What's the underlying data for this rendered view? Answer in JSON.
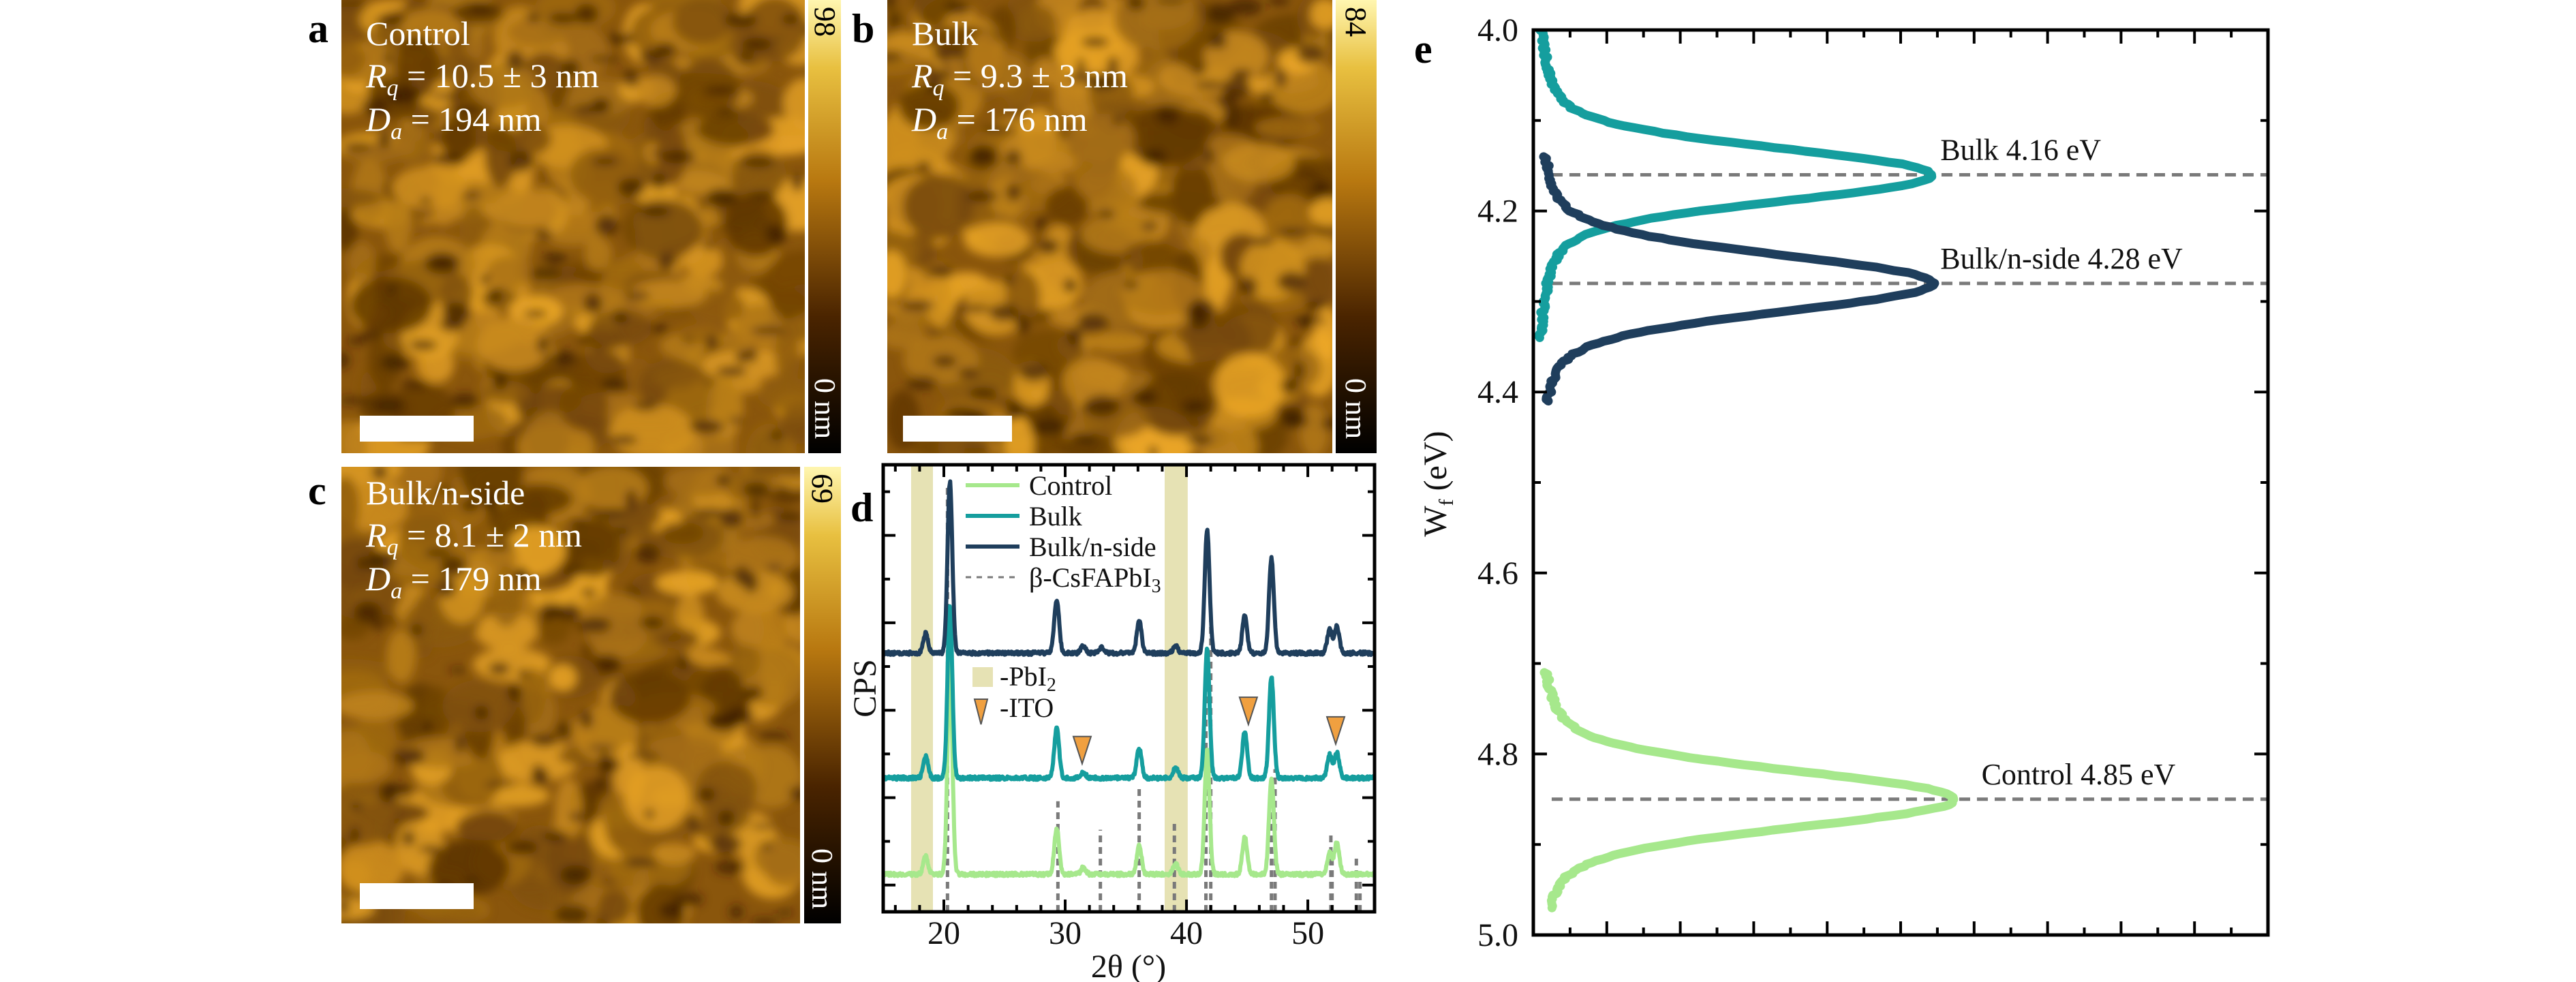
{
  "panels": {
    "a": {
      "letter": "a",
      "title": "Control",
      "rq_sym": "R",
      "rq_sub": "q",
      "rq_val": " = 10.5 ± 3 nm",
      "da_sym": "D",
      "da_sub": "a",
      "da_val": " = 194 nm",
      "cbar_max": "98",
      "cbar_min": "0 nm"
    },
    "b": {
      "letter": "b",
      "title": "Bulk",
      "rq_sym": "R",
      "rq_sub": "q",
      "rq_val": " = 9.3 ± 3 nm",
      "da_sym": "D",
      "da_sub": "a",
      "da_val": " = 176 nm",
      "cbar_max": "84",
      "cbar_min": "0 nm"
    },
    "c": {
      "letter": "c",
      "title": "Bulk/n-side",
      "rq_sym": "R",
      "rq_sub": "q",
      "rq_val": " = 8.1 ± 2 nm",
      "da_sym": "D",
      "da_sub": "a",
      "da_val": " = 179 nm",
      "cbar_max": "69",
      "cbar_min": "0 nm"
    },
    "d": {
      "letter": "d"
    },
    "e": {
      "letter": "e"
    }
  },
  "colors": {
    "control": "#a6e88c",
    "bulk": "#159e9e",
    "nside": "#1f3e5c",
    "ref": "#7a7a7a",
    "pbi2": "#e6e2b4",
    "ito": "#f0a040"
  },
  "chart_data": [
    {
      "type": "line",
      "title": "",
      "xlabel": "2θ (°)",
      "ylabel": "CPS",
      "xlim": [
        15,
        55.5
      ],
      "ylim": [
        0,
        1253
      ],
      "xticks": [
        "20",
        "30",
        "40",
        "50"
      ],
      "xtick_values": [
        20,
        30,
        40,
        50
      ],
      "legend": [
        {
          "label": "Control",
          "key": "control"
        },
        {
          "label": "Bulk",
          "key": "bulk"
        },
        {
          "label": "Bulk/n-side",
          "key": "nside"
        },
        {
          "label": "β-CsFAPbI",
          "sub": "3",
          "key": "ref"
        }
      ],
      "legend_placement": "top-center",
      "markers_legend": {
        "pbi2": "-PbI",
        "pbi2_sub": "2",
        "ito": "-ITO"
      },
      "series": [
        {
          "name": "Control",
          "key": "control",
          "offset": 105,
          "peaks": [
            [
              18.5,
              50
            ],
            [
              20.5,
              600
            ],
            [
              29.3,
              130
            ],
            [
              31.5,
              20
            ],
            [
              36.1,
              80
            ],
            [
              39.1,
              30
            ],
            [
              41.7,
              350
            ],
            [
              44.8,
              105
            ],
            [
              47.0,
              270
            ],
            [
              51.8,
              60
            ],
            [
              52.4,
              90
            ]
          ]
        },
        {
          "name": "Bulk",
          "key": "bulk",
          "offset": 375,
          "peaks": [
            [
              18.5,
              60
            ],
            [
              20.5,
              480
            ],
            [
              29.3,
              140
            ],
            [
              31.5,
              15
            ],
            [
              36.1,
              85
            ],
            [
              39.1,
              30
            ],
            [
              41.7,
              360
            ],
            [
              44.8,
              130
            ],
            [
              47.0,
              285
            ],
            [
              51.8,
              65
            ],
            [
              52.4,
              70
            ]
          ]
        },
        {
          "name": "Bulk/n-side",
          "key": "nside",
          "offset": 725,
          "peaks": [
            [
              18.5,
              55
            ],
            [
              20.5,
              480
            ],
            [
              29.3,
              150
            ],
            [
              31.5,
              20
            ],
            [
              33.0,
              15
            ],
            [
              36.1,
              90
            ],
            [
              39.1,
              20
            ],
            [
              41.7,
              345
            ],
            [
              44.8,
              105
            ],
            [
              47.0,
              265
            ],
            [
              51.8,
              65
            ],
            [
              52.4,
              75
            ]
          ]
        }
      ],
      "reference_lines": [
        [
          20.3,
          1200
        ],
        [
          29.4,
          310
        ],
        [
          32.9,
          230
        ],
        [
          36.1,
          355
        ],
        [
          39.0,
          250
        ],
        [
          41.6,
          700
        ],
        [
          42.0,
          850
        ],
        [
          47.0,
          380
        ],
        [
          47.3,
          400
        ],
        [
          51.9,
          215
        ],
        [
          52.0,
          170
        ],
        [
          54.0,
          150
        ],
        [
          54.3,
          110
        ]
      ],
      "pbi2_bands": [
        [
          17.3,
          19.1
        ],
        [
          38.2,
          40.1
        ]
      ],
      "ito_markers": [
        [
          31.4,
          415
        ],
        [
          45.1,
          525
        ],
        [
          52.3,
          470
        ]
      ]
    },
    {
      "type": "line",
      "title": "",
      "xlabel": "",
      "ylabel": "W",
      "ylabel_sub": "f",
      "ylabel_unit": " (eV)",
      "ylim": [
        4.0,
        5.0
      ],
      "xlim": [
        0,
        10
      ],
      "yticks": [
        "4.0",
        "4.2",
        "4.4",
        "4.6",
        "4.8",
        "5.0"
      ],
      "ytick_values": [
        4.0,
        4.2,
        4.4,
        4.6,
        4.8,
        5.0
      ],
      "series": [
        {
          "name": "Bulk",
          "key": "bulk",
          "peak_wf": 4.16,
          "peak_count": 5.43,
          "sigma": 0.028,
          "range": [
            4.0,
            4.34
          ]
        },
        {
          "name": "Bulk/n-side",
          "key": "nside",
          "peak_wf": 4.28,
          "peak_count": 5.45,
          "sigma": 0.03,
          "range": [
            4.14,
            4.41
          ]
        },
        {
          "name": "Control",
          "key": "control",
          "peak_wf": 4.85,
          "peak_count": 5.74,
          "sigma": 0.03,
          "range": [
            4.71,
            4.97
          ]
        }
      ],
      "annotations": [
        {
          "text": "Bulk 4.16 eV",
          "wf": 4.16,
          "x": 5.54
        },
        {
          "text": "Bulk/n-side 4.28 eV",
          "wf": 4.28,
          "x": 5.54
        },
        {
          "text": "Control 4.85 eV",
          "wf": 4.85,
          "x": 6.1
        }
      ]
    }
  ]
}
